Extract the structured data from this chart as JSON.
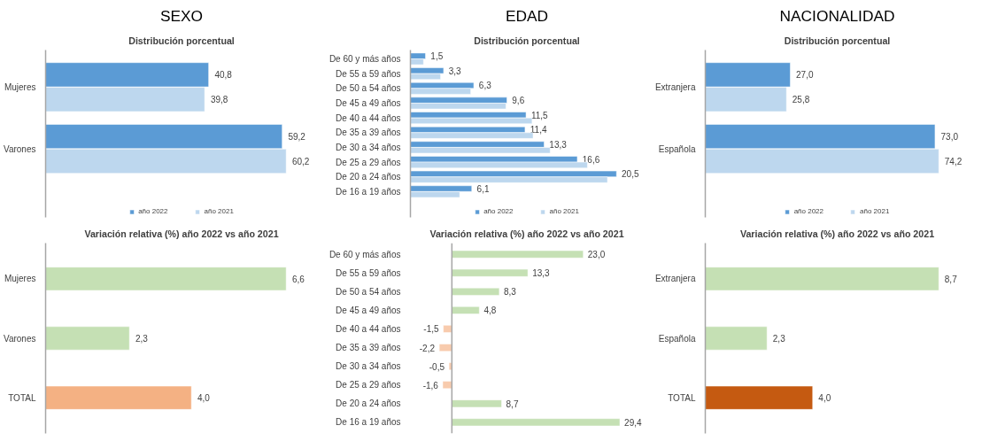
{
  "chart_data": [
    {
      "type": "bar",
      "title": "SEXO",
      "subtitle": "Distribución porcentual",
      "orientation": "horizontal",
      "categories": [
        "Mujeres",
        "Varones"
      ],
      "legend": "bottom",
      "tick_labels": "y",
      "series": [
        {
          "name": "año 2022",
          "color": "#5b9bd5",
          "values": [
            40.8,
            59.2
          ],
          "value_labels": [
            "40,8",
            "59,2"
          ]
        },
        {
          "name": "año 2021",
          "color": "#bdd7ee",
          "values": [
            39.8,
            60.2
          ],
          "value_labels": [
            "39,8",
            "60,2"
          ]
        }
      ]
    },
    {
      "type": "bar",
      "title": "EDAD",
      "subtitle": "Distribución porcentual",
      "orientation": "horizontal",
      "categories": [
        "De 60 y más años",
        "De 55 a 59 años",
        "De 50 a 54 años",
        "De 45 a 49 años",
        "De 40 a 44 años",
        "De 35 a 39 años",
        "De 30 a 34 años",
        "De 25 a 29 años",
        "De 20 a 24 años",
        "De 16 a 19 años"
      ],
      "legend": "bottom",
      "tick_labels": "y",
      "series": [
        {
          "name": "año 2022",
          "color": "#5b9bd5",
          "values": [
            1.5,
            3.3,
            6.3,
            9.6,
            11.5,
            11.4,
            13.3,
            16.6,
            20.5,
            6.1
          ],
          "value_labels": [
            "1,5",
            "3,3",
            "6,3",
            "9,6",
            "11,5",
            "11,4",
            "13,3",
            "16,6",
            "20,5",
            "6,1"
          ]
        },
        {
          "name": "año 2021",
          "color": "#bdd7ee",
          "values": [
            1.3,
            3.0,
            6.0,
            9.5,
            12.1,
            12.2,
            13.9,
            17.6,
            19.6,
            4.9
          ]
        }
      ]
    },
    {
      "type": "bar",
      "title": "NACIONALIDAD",
      "subtitle": "Distribución porcentual",
      "orientation": "horizontal",
      "categories": [
        "Extranjera",
        "Española"
      ],
      "legend": "bottom",
      "tick_labels": "y",
      "series": [
        {
          "name": "año 2022",
          "color": "#5b9bd5",
          "values": [
            27.0,
            73.0
          ],
          "value_labels": [
            "27,0",
            "73,0"
          ]
        },
        {
          "name": "año 2021",
          "color": "#bdd7ee",
          "values": [
            25.8,
            74.2
          ],
          "value_labels": [
            "25,8",
            "74,2"
          ]
        }
      ]
    },
    {
      "type": "bar",
      "title": "Variación relativa (%) año 2022 vs año 2021",
      "orientation": "horizontal",
      "categories": [
        "Mujeres",
        "Varones",
        "TOTAL"
      ],
      "tick_labels": "y",
      "values": [
        6.6,
        2.3,
        4.0
      ],
      "colors": [
        "#c5e0b4",
        "#c5e0b4",
        "#f4b183"
      ],
      "value_labels": [
        "6,6",
        "2,3",
        "4,0"
      ]
    },
    {
      "type": "bar",
      "title": "Variación relativa (%) año 2022 vs año 2021",
      "orientation": "horizontal",
      "categories": [
        "De 60 y más años",
        "De 55 a 59 años",
        "De 50 a 54 años",
        "De 45 a 49 años",
        "De 40 a 44 años",
        "De 35 a 39 años",
        "De 30 a 34 años",
        "De 25 a 29 años",
        "De 20 a 24 años",
        "De 16 a 19 años"
      ],
      "tick_labels": "y",
      "values": [
        23.0,
        13.3,
        8.3,
        4.8,
        -1.5,
        -2.2,
        -0.5,
        -1.6,
        8.7,
        29.4
      ],
      "colors": [
        "#c5e0b4",
        "#c5e0b4",
        "#c5e0b4",
        "#c5e0b4",
        "#f8cbad",
        "#f8cbad",
        "#f8cbad",
        "#f8cbad",
        "#c5e0b4",
        "#c5e0b4"
      ],
      "value_labels": [
        "23,0",
        "13,3",
        "8,3",
        "4,8",
        "-1,5",
        "-2,2",
        "-0,5",
        "-1,6",
        "8,7",
        "29,4"
      ]
    },
    {
      "type": "bar",
      "title": "Variación relativa (%) año 2022 vs año 2021",
      "orientation": "horizontal",
      "categories": [
        "Extranjera",
        "Española",
        "TOTAL"
      ],
      "tick_labels": "y",
      "values": [
        8.7,
        2.3,
        4.0
      ],
      "colors": [
        "#c5e0b4",
        "#c5e0b4",
        "#c55a11"
      ],
      "value_labels": [
        "8,7",
        "2,3",
        "4,0"
      ]
    }
  ]
}
